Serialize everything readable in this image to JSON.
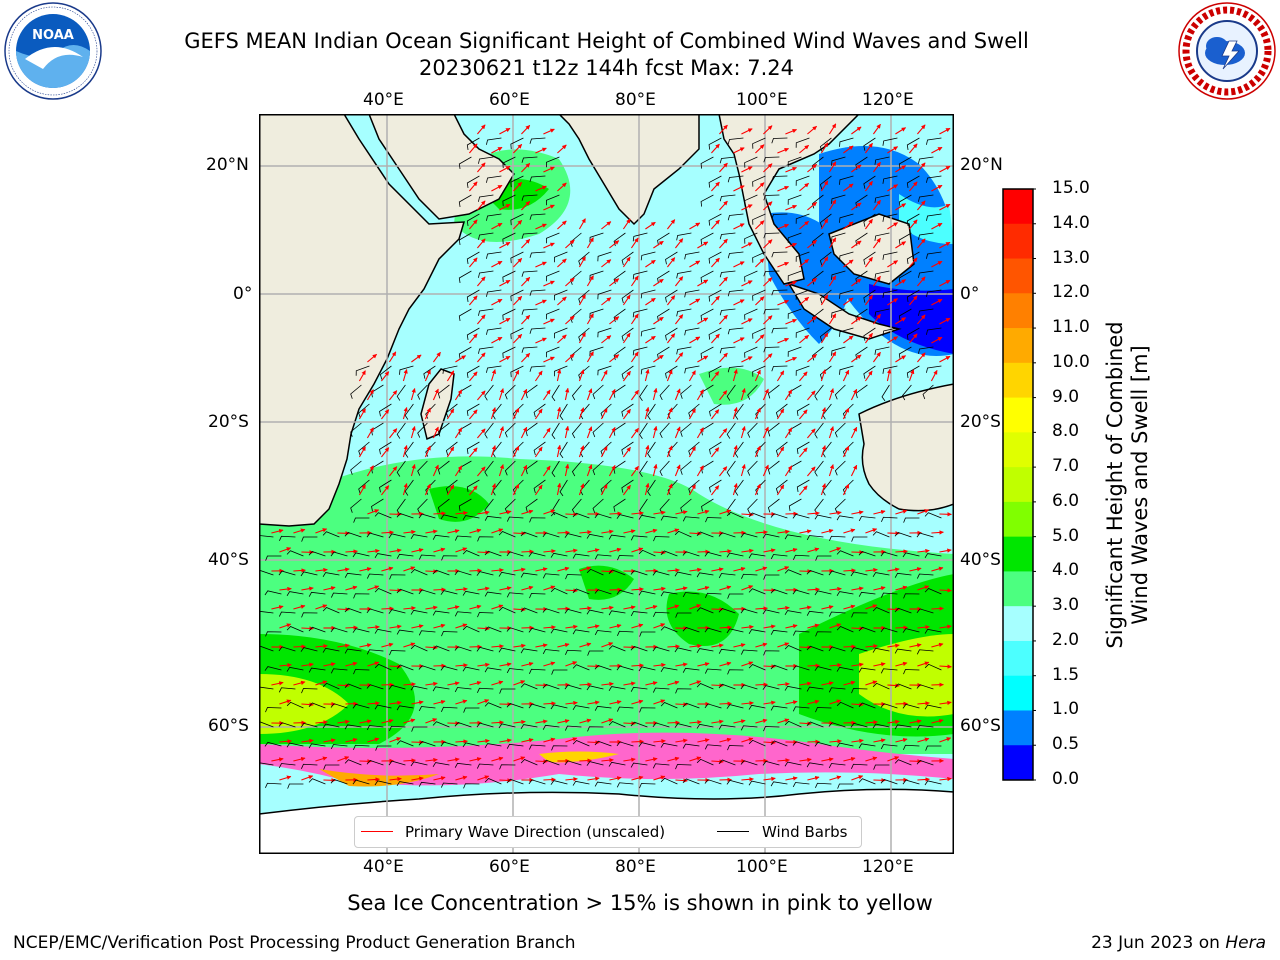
{
  "header": {
    "title_line1": "GEFS MEAN Indian Ocean Significant Height of Combined Wind Waves and Swell",
    "title_line2": "20230621 t12z 144h fcst   Max: 7.24"
  },
  "logos": {
    "left": {
      "name": "NOAA",
      "ring_text": "NATIONAL OCEANIC AND ATMOSPHERIC ADMINISTRATION · U.S. DEPARTMENT OF COMMERCE"
    },
    "right": {
      "ring_text": "NATIONAL WEATHER SERVICE"
    }
  },
  "map": {
    "lon_labels": [
      "40°E",
      "60°E",
      "80°E",
      "100°E",
      "120°E"
    ],
    "lat_labels": [
      "20°N",
      "0°",
      "20°S",
      "40°S",
      "60°S"
    ],
    "legend": {
      "wave_direction": "Primary Wave Direction (unscaled)",
      "wind_barbs": "Wind Barbs",
      "wave_direction_color": "#ff0000",
      "wind_barbs_color": "#000000"
    },
    "colors": {
      "land": "#efedde",
      "ocean_low": "#a6ffff",
      "ice": "#ff66cc"
    }
  },
  "colorbar": {
    "label_line1": "Significant Height of Combined",
    "label_line2": "Wind Waves and Swell [m]",
    "ticks": [
      "15.0",
      "14.0",
      "13.0",
      "12.0",
      "11.0",
      "10.0",
      "9.0",
      "8.0",
      "7.0",
      "6.0",
      "5.0",
      "4.0",
      "3.0",
      "2.0",
      "1.5",
      "1.0",
      "0.5",
      "0.0"
    ],
    "colors_top_to_bottom": [
      "#ff0000",
      "#ff2b00",
      "#ff5500",
      "#ff8000",
      "#ffaa00",
      "#ffd500",
      "#ffff00",
      "#e0ff00",
      "#c0ff00",
      "#80ff00",
      "#00e600",
      "#4cff80",
      "#a6ffff",
      "#4cffff",
      "#00ffff",
      "#0080ff",
      "#0000ff"
    ]
  },
  "footer": {
    "note": "Sea Ice Concentration > 15% is shown in pink to yellow",
    "credit": "NCEP/EMC/Verification Post Processing Product Generation Branch",
    "date_prefix": "23 Jun 2023 on ",
    "date_system": "Hera"
  }
}
